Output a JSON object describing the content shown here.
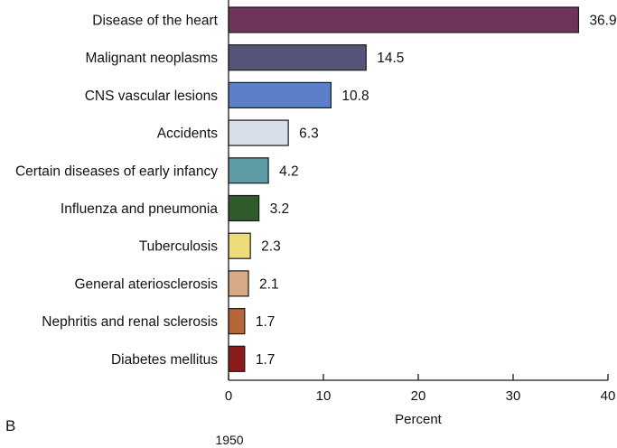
{
  "chart_data": {
    "type": "bar",
    "orientation": "horizontal",
    "panel": "B",
    "caption": "1950",
    "xlabel": "Percent",
    "xlim": [
      0,
      40
    ],
    "xticks": [
      0,
      10,
      20,
      30,
      40
    ],
    "categories": [
      "Disease of the heart",
      "Malignant neoplasms",
      "CNS vascular lesions",
      "Accidents",
      "Certain diseases of early infancy",
      "Influenza and pneumonia",
      "Tuberculosis",
      "General ateriosclerosis",
      "Nephritis and renal sclerosis",
      "Diabetes mellitus"
    ],
    "values": [
      36.9,
      14.5,
      10.8,
      6.3,
      4.2,
      3.2,
      2.3,
      2.1,
      1.7,
      1.7
    ],
    "value_labels": [
      "36.9",
      "14.5",
      "10.8",
      "6.3",
      "4.2",
      "3.2",
      "2.3",
      "2.1",
      "1.7",
      "1.7"
    ],
    "colors": [
      "#6e3558",
      "#565378",
      "#5b80c8",
      "#d6dee8",
      "#5e9ba5",
      "#2f5a2c",
      "#ecdc7c",
      "#d9aa87",
      "#b56638",
      "#8b1a1a"
    ]
  }
}
